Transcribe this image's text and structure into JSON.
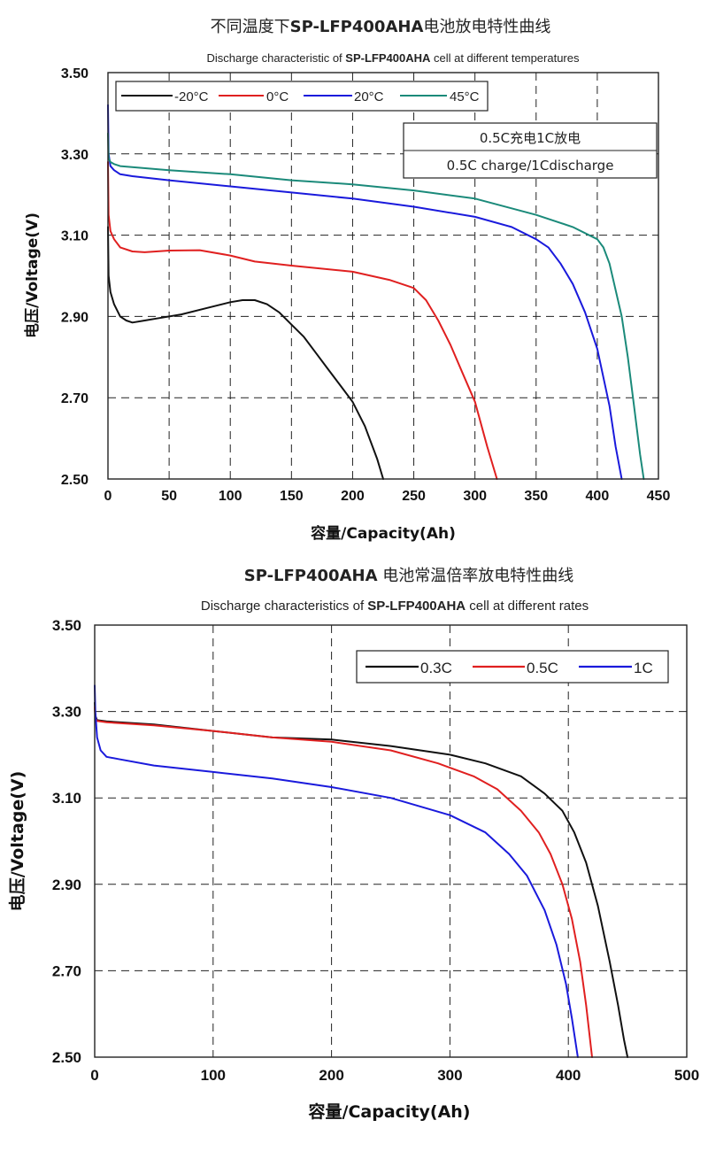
{
  "chart_data": [
    {
      "type": "line",
      "title_cn_prefix": "不同温度下",
      "title_model": "SP-LFP400AHA",
      "title_cn_suffix": "电池放电特性曲线",
      "subtitle_prefix": "Discharge characteristic of ",
      "subtitle_model": "SP-LFP400AHA",
      "subtitle_suffix": " cell at different temperatures",
      "xlabel": "容量/Capacity(Ah)",
      "ylabel": "电压/Voltage(V)",
      "xlim": [
        0,
        450
      ],
      "ylim": [
        2.5,
        3.5
      ],
      "xticks": [
        0,
        50,
        100,
        150,
        200,
        250,
        300,
        350,
        400,
        450
      ],
      "yticks": [
        "2.50",
        "2.70",
        "2.90",
        "3.10",
        "3.30",
        "3.50"
      ],
      "grid": true,
      "legend_position": "top-left",
      "note_line1": "0.5C充电1C放电",
      "note_line2": "0.5C charge/1Cdischarge",
      "series": [
        {
          "name": "-20°C",
          "color": "#111111",
          "x": [
            0,
            0.5,
            2,
            5,
            10,
            15,
            20,
            30,
            40,
            60,
            80,
            100,
            110,
            120,
            130,
            140,
            150,
            160,
            170,
            180,
            190,
            200,
            210,
            220,
            225
          ],
          "y": [
            3.12,
            3.0,
            2.96,
            2.93,
            2.9,
            2.89,
            2.885,
            2.89,
            2.895,
            2.905,
            2.92,
            2.935,
            2.94,
            2.94,
            2.93,
            2.91,
            2.88,
            2.85,
            2.81,
            2.77,
            2.73,
            2.69,
            2.63,
            2.55,
            2.5
          ]
        },
        {
          "name": "0°C",
          "color": "#e02020",
          "x": [
            0,
            0.5,
            2,
            5,
            10,
            20,
            30,
            50,
            75,
            100,
            120,
            150,
            200,
            230,
            250,
            260,
            270,
            280,
            290,
            300,
            310,
            318
          ],
          "y": [
            3.28,
            3.15,
            3.11,
            3.09,
            3.07,
            3.06,
            3.058,
            3.062,
            3.063,
            3.05,
            3.035,
            3.025,
            3.01,
            2.99,
            2.97,
            2.94,
            2.89,
            2.83,
            2.76,
            2.69,
            2.58,
            2.5
          ]
        },
        {
          "name": "20°C",
          "color": "#1a1adc",
          "x": [
            0,
            0.5,
            2,
            5,
            10,
            20,
            50,
            100,
            150,
            200,
            250,
            300,
            330,
            350,
            360,
            370,
            380,
            390,
            400,
            410,
            415,
            420
          ],
          "y": [
            3.42,
            3.3,
            3.27,
            3.26,
            3.25,
            3.245,
            3.235,
            3.22,
            3.205,
            3.19,
            3.17,
            3.145,
            3.12,
            3.09,
            3.07,
            3.03,
            2.98,
            2.91,
            2.82,
            2.68,
            2.58,
            2.5
          ]
        },
        {
          "name": "45°C",
          "color": "#1b8a7a",
          "x": [
            0,
            0.5,
            2,
            5,
            10,
            50,
            100,
            150,
            200,
            250,
            300,
            350,
            380,
            400,
            405,
            410,
            420,
            425,
            430,
            435,
            438
          ],
          "y": [
            3.35,
            3.29,
            3.28,
            3.275,
            3.27,
            3.26,
            3.25,
            3.235,
            3.225,
            3.21,
            3.19,
            3.15,
            3.12,
            3.09,
            3.07,
            3.03,
            2.9,
            2.8,
            2.68,
            2.56,
            2.5
          ]
        }
      ]
    },
    {
      "type": "line",
      "title_model": "SP-LFP400AHA",
      "title_cn_suffix": " 电池常温倍率放电特性曲线",
      "subtitle_prefix": "Discharge characteristics of ",
      "subtitle_model": "SP-LFP400AHA",
      "subtitle_suffix": " cell at different rates",
      "xlabel": "容量/Capacity(Ah)",
      "ylabel": "电压/Voltage(V)",
      "xlim": [
        0,
        500
      ],
      "ylim": [
        2.5,
        3.5
      ],
      "xticks": [
        0,
        100,
        200,
        300,
        400,
        500
      ],
      "yticks": [
        "2.50",
        "2.70",
        "2.90",
        "3.10",
        "3.30",
        "3.50"
      ],
      "grid": true,
      "legend_position": "top-right",
      "series": [
        {
          "name": "0.3C",
          "color": "#111111",
          "x": [
            0,
            0.5,
            2,
            10,
            50,
            100,
            150,
            200,
            250,
            300,
            330,
            360,
            380,
            395,
            405,
            415,
            425,
            435,
            442,
            447,
            450
          ],
          "y": [
            3.32,
            3.29,
            3.28,
            3.277,
            3.27,
            3.255,
            3.24,
            3.235,
            3.22,
            3.2,
            3.18,
            3.15,
            3.11,
            3.07,
            3.02,
            2.95,
            2.85,
            2.72,
            2.62,
            2.54,
            2.5
          ]
        },
        {
          "name": "0.5C",
          "color": "#e02020",
          "x": [
            0,
            0.5,
            2,
            10,
            50,
            100,
            150,
            200,
            250,
            290,
            320,
            340,
            360,
            375,
            385,
            395,
            403,
            410,
            415,
            420
          ],
          "y": [
            3.31,
            3.285,
            3.278,
            3.275,
            3.268,
            3.255,
            3.24,
            3.23,
            3.21,
            3.18,
            3.15,
            3.12,
            3.07,
            3.02,
            2.97,
            2.9,
            2.82,
            2.72,
            2.62,
            2.5
          ]
        },
        {
          "name": "1C",
          "color": "#1a1adc",
          "x": [
            0,
            0.5,
            2,
            5,
            10,
            20,
            50,
            100,
            150,
            200,
            250,
            300,
            330,
            350,
            365,
            380,
            390,
            398,
            403,
            408
          ],
          "y": [
            3.36,
            3.3,
            3.24,
            3.21,
            3.195,
            3.19,
            3.175,
            3.16,
            3.145,
            3.125,
            3.1,
            3.06,
            3.02,
            2.97,
            2.92,
            2.84,
            2.76,
            2.67,
            2.59,
            2.5
          ]
        }
      ]
    }
  ]
}
